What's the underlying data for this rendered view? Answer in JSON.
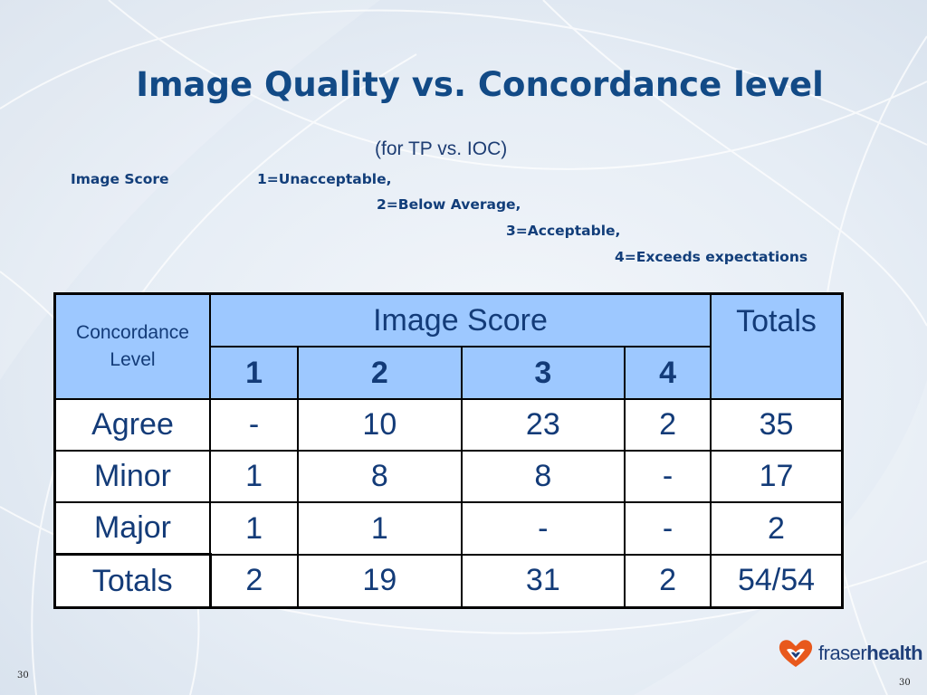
{
  "slide": {
    "title": "Image Quality vs. Concordance level",
    "subtitle": "(for TP vs. IOC)",
    "slide_number_left": "30",
    "slide_number_right": "30"
  },
  "legend": {
    "label": "Image Score",
    "score_1": "1=Unacceptable,",
    "score_2": "2=Below Average,",
    "score_3": "3=Acceptable,",
    "score_4": "4=Exceeds expectations"
  },
  "table": {
    "header": {
      "concordance": "Concordance Level",
      "group": "Image Score",
      "totals": "Totals",
      "scores": [
        "1",
        "2",
        "3",
        "4"
      ]
    },
    "rows": [
      {
        "label": "Agree",
        "cells": [
          "-",
          "10",
          "23",
          "2"
        ],
        "total": "35"
      },
      {
        "label": "Minor",
        "cells": [
          "1",
          "8",
          "8",
          "-"
        ],
        "total": "17"
      },
      {
        "label": "Major",
        "cells": [
          "1",
          "1",
          "-",
          "-"
        ],
        "total": "2"
      },
      {
        "label": "Totals",
        "cells": [
          "2",
          "19",
          "31",
          "2"
        ],
        "total": "54/54"
      }
    ]
  },
  "logo": {
    "text_light": "fraser",
    "text_bold": "health"
  },
  "colors": {
    "title": "#124a86",
    "header_fill": "#9dc8ff",
    "text": "#133b78",
    "logo_orange": "#e8581c"
  }
}
